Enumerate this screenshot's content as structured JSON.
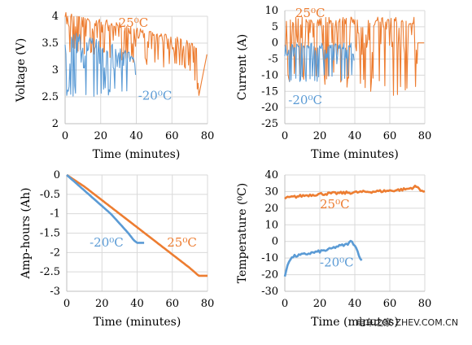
{
  "colors": {
    "warm": "#ed7d31",
    "cold": "#5b9bd5"
  },
  "watermark": "电车之家 ZHEV.COM.CN",
  "chart_data": [
    {
      "type": "line",
      "id": "voltage",
      "xlabel": "Time (minutes)",
      "ylabel": "Voltage (V)",
      "xlim": [
        0,
        80
      ],
      "ylim": [
        2,
        4
      ],
      "xticks": [
        "0",
        "20",
        "40",
        "60",
        "80"
      ],
      "yticks": [
        "2",
        "2.5",
        "3",
        "3.5",
        "4"
      ],
      "series": [
        {
          "name": "25⁰C",
          "color": "#ed7d31",
          "x": [
            0,
            10,
            20,
            30,
            40,
            50,
            60,
            70,
            74,
            75,
            80
          ],
          "y": [
            4.1,
            4.0,
            3.95,
            3.9,
            3.8,
            3.7,
            3.65,
            3.55,
            3.4,
            2.5,
            3.35
          ],
          "noisy": true,
          "noise_min": [
            3.3,
            3.3,
            3.2,
            3.2,
            3.1,
            3.1,
            3.0,
            3.0,
            2.6,
            2.5,
            3.35
          ]
        },
        {
          "name": "-20⁰C",
          "color": "#5b9bd5",
          "x": [
            0,
            10,
            20,
            30,
            38,
            40
          ],
          "y": [
            3.75,
            3.65,
            3.55,
            3.45,
            3.3,
            3.0
          ],
          "noisy": true,
          "noise_min": [
            2.5,
            2.5,
            2.5,
            2.5,
            2.5,
            2.6
          ]
        }
      ],
      "annotations": [
        {
          "text": "25⁰C",
          "series": "25⁰C",
          "x": 30,
          "y": 3.8
        },
        {
          "text": "-20⁰C",
          "series": "-20⁰C",
          "x": 41,
          "y": 2.45
        }
      ]
    },
    {
      "type": "line",
      "id": "current",
      "xlabel": "Time (minutes)",
      "ylabel": "Current (A)",
      "xlim": [
        0,
        80
      ],
      "ylim": [
        -25,
        10
      ],
      "xticks": [
        "0",
        "20",
        "40",
        "60",
        "80"
      ],
      "yticks": [
        "-25",
        "-20",
        "-15",
        "-10",
        "-5",
        "0",
        "5",
        "10"
      ],
      "series": [
        {
          "name": "25⁰C",
          "color": "#ed7d31",
          "x": [
            0,
            40,
            75,
            76,
            80
          ],
          "y": [
            8,
            8,
            8,
            0,
            0
          ],
          "noisy": true,
          "noise_min": [
            -12,
            -14,
            -18,
            0,
            0
          ]
        },
        {
          "name": "-20⁰C",
          "color": "#5b9bd5",
          "x": [
            0,
            40
          ],
          "y": [
            0,
            0
          ],
          "noisy": true,
          "noise_min": [
            -12,
            -12
          ]
        }
      ],
      "annotations": [
        {
          "text": "25⁰C",
          "series": "25⁰C",
          "x": 6,
          "y": 8
        },
        {
          "text": "-20⁰C",
          "series": "-20⁰C",
          "x": 2,
          "y": -19
        }
      ]
    },
    {
      "type": "line",
      "id": "amphours",
      "xlabel": "Time (minutes)",
      "ylabel": "Amp-hours (Ah)",
      "xlim": [
        0,
        80
      ],
      "ylim": [
        -3,
        0
      ],
      "xticks": [
        "0",
        "20",
        "40",
        "60",
        "80"
      ],
      "yticks": [
        "-3",
        "-2.5",
        "-2",
        "-1.5",
        "-1",
        "-0.5",
        "0"
      ],
      "series": [
        {
          "name": "25⁰C",
          "color": "#ed7d31",
          "x": [
            0,
            10,
            20,
            30,
            40,
            50,
            60,
            70,
            75,
            80
          ],
          "y": [
            0,
            -0.3,
            -0.65,
            -1.0,
            -1.35,
            -1.7,
            -2.05,
            -2.4,
            -2.6,
            -2.6
          ]
        },
        {
          "name": "-20⁰C",
          "color": "#5b9bd5",
          "x": [
            0,
            5,
            10,
            15,
            20,
            25,
            30,
            35,
            38,
            40,
            44
          ],
          "y": [
            0,
            -0.2,
            -0.4,
            -0.6,
            -0.8,
            -1.0,
            -1.25,
            -1.5,
            -1.68,
            -1.75,
            -1.75
          ]
        }
      ],
      "annotations": [
        {
          "text": "25⁰C",
          "series": "25⁰C",
          "x": 57,
          "y": -1.85
        },
        {
          "text": "-20⁰C",
          "series": "-20⁰C",
          "x": 13,
          "y": -1.85
        }
      ]
    },
    {
      "type": "line",
      "id": "temperature",
      "xlabel": "Time (minutes)",
      "ylabel": "Temperature (⁰C)",
      "xlim": [
        0,
        80
      ],
      "ylim": [
        -30,
        40
      ],
      "xticks": [
        "0",
        "20",
        "40",
        "60",
        "80"
      ],
      "yticks": [
        "-30",
        "-20",
        "-10",
        "0",
        "10",
        "20",
        "30",
        "40"
      ],
      "series": [
        {
          "name": "25⁰C",
          "color": "#ed7d31",
          "x": [
            0,
            10,
            20,
            30,
            40,
            50,
            60,
            70,
            75,
            80
          ],
          "y": [
            26,
            27.5,
            28.5,
            29,
            29.5,
            30,
            30.5,
            31.5,
            33,
            29.5
          ]
        },
        {
          "name": "-20⁰C",
          "color": "#5b9bd5",
          "x": [
            0,
            2,
            5,
            10,
            15,
            20,
            25,
            30,
            35,
            38,
            40,
            44
          ],
          "y": [
            -21,
            -12,
            -9,
            -8,
            -7,
            -6,
            -5,
            -3,
            -2,
            0,
            -2,
            -12
          ]
        }
      ],
      "annotations": [
        {
          "text": "25⁰C",
          "series": "25⁰C",
          "x": 20,
          "y": 20
        },
        {
          "text": "-20⁰C",
          "series": "-20⁰C",
          "x": 20,
          "y": -15
        }
      ]
    }
  ]
}
